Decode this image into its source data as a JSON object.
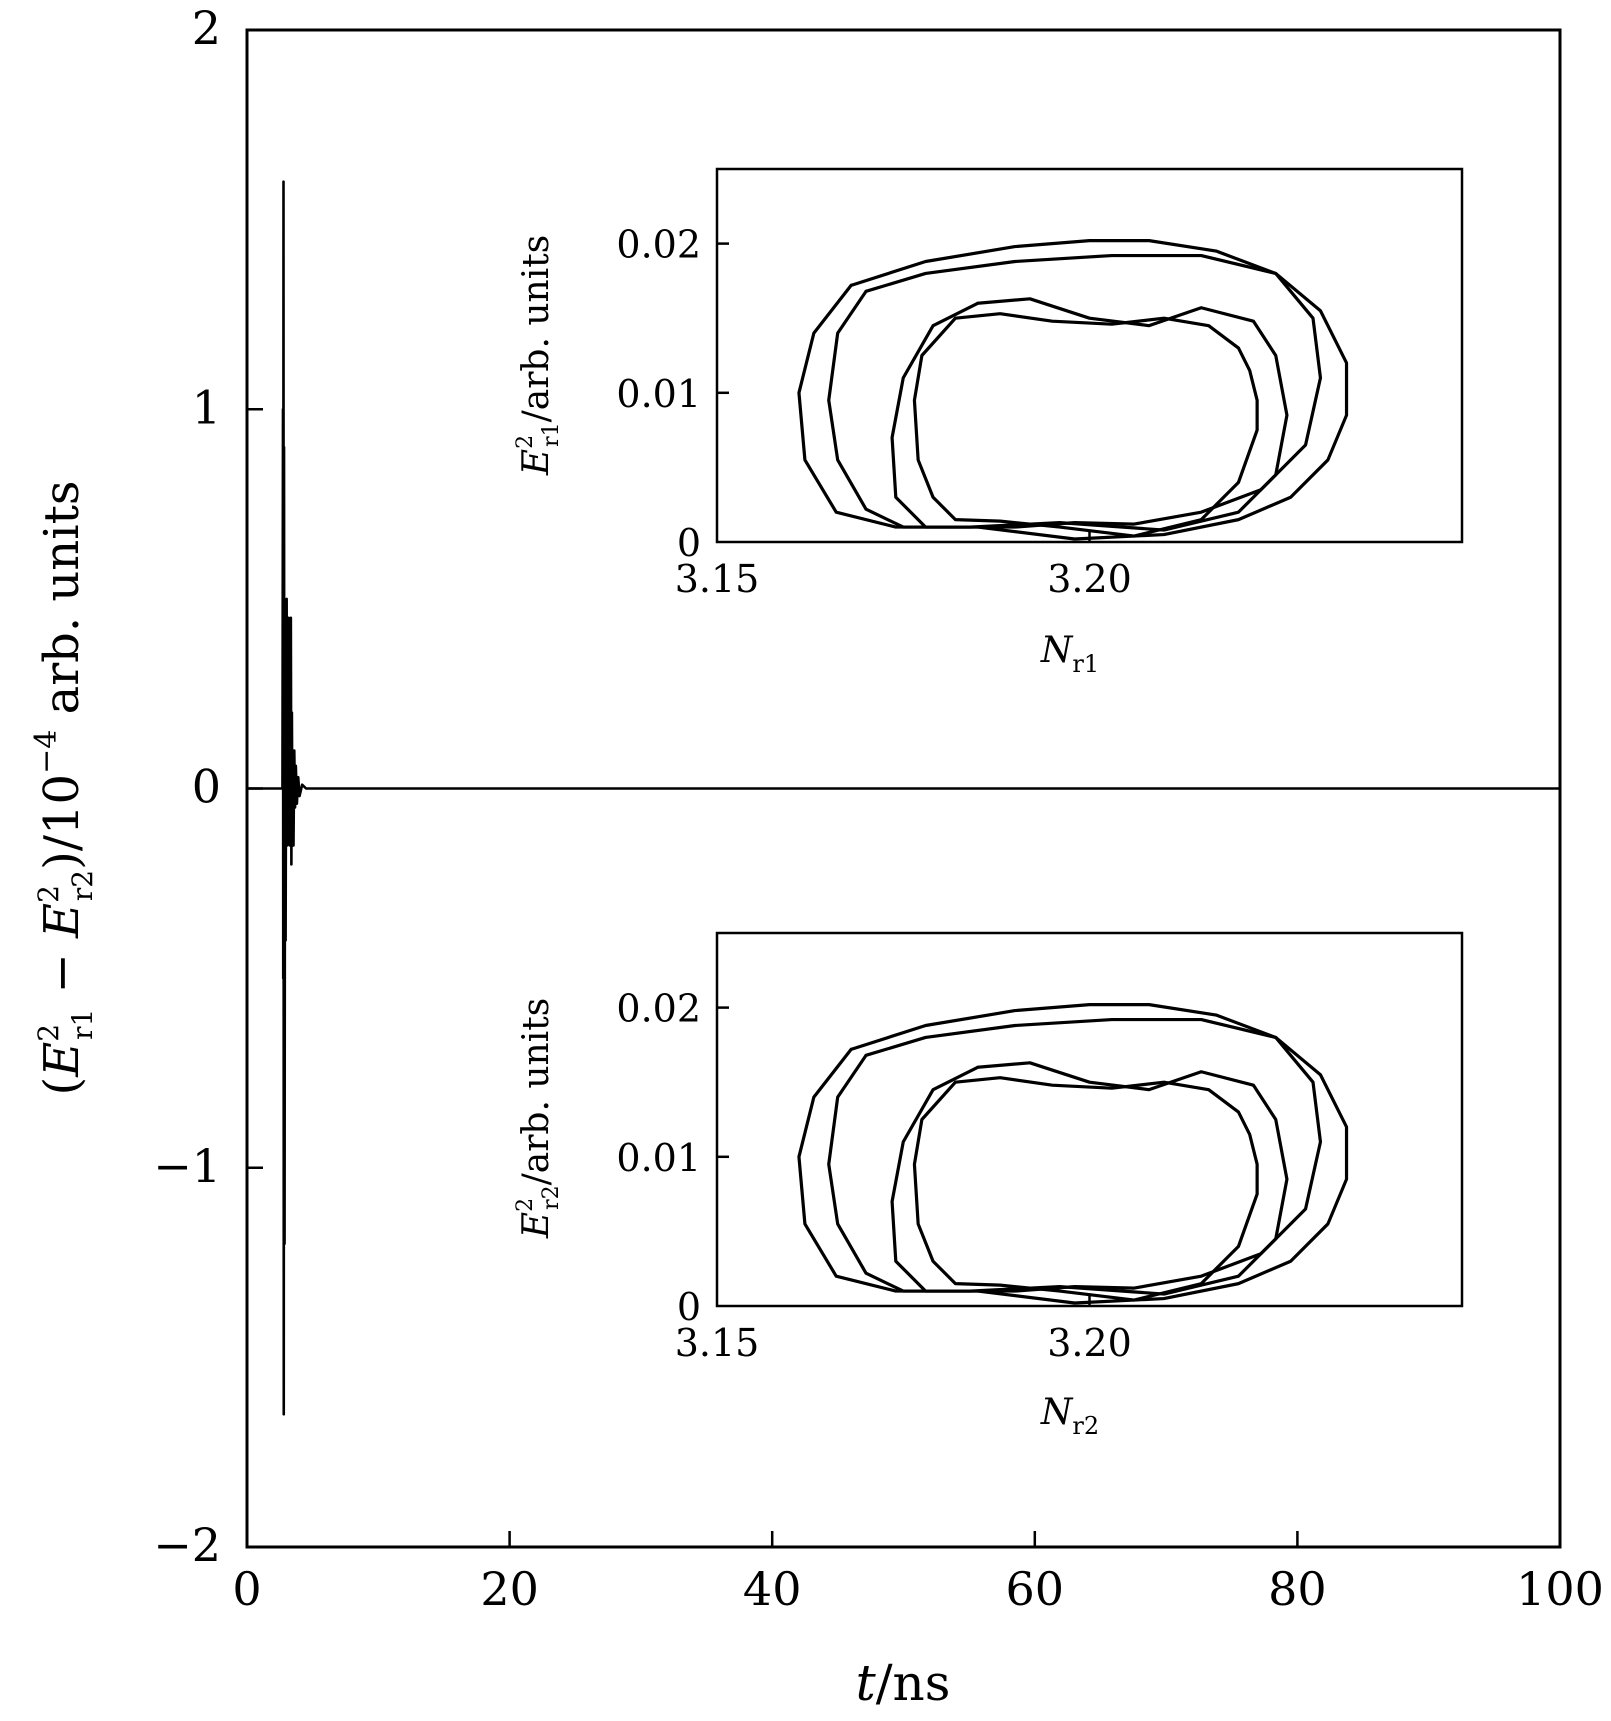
{
  "chart_data": [
    {
      "type": "line",
      "id": "main",
      "xlabel": "t/ns",
      "ylabel": "(E²r1 − E²r2)/10⁻⁴ arb. units",
      "xlim": [
        0,
        100
      ],
      "ylim": [
        -2,
        2
      ],
      "x_ticks": [
        0,
        20,
        40,
        60,
        80,
        100
      ],
      "x_tick_labels": [
        "0",
        "20",
        "40",
        "60",
        "80",
        "100"
      ],
      "y_ticks": [
        -2,
        -1,
        0,
        1,
        2
      ],
      "y_tick_labels": [
        "−2",
        "−1",
        "0",
        "1",
        "2"
      ],
      "grid": false,
      "series": [
        {
          "color": "#000000",
          "x": [
            0,
            2.7,
            2.74,
            2.76,
            2.78,
            2.8,
            2.82,
            2.86,
            2.9,
            2.94,
            2.98,
            3.02,
            3.06,
            3.1,
            3.14,
            3.18,
            3.22,
            3.26,
            3.3,
            3.34,
            3.38,
            3.42,
            3.46,
            3.5,
            3.54,
            3.6,
            3.66,
            3.72,
            3.8,
            3.9,
            4.0,
            4.2,
            4.5,
            5,
            100
          ],
          "y": [
            0,
            0,
            1.0,
            -0.5,
            1.6,
            -1.65,
            0.9,
            -1.2,
            0.3,
            -0.4,
            0.15,
            0.5,
            -0.15,
            0.3,
            -0.1,
            0.45,
            0.4,
            -0.15,
            0.1,
            0.45,
            -0.2,
            0.2,
            -0.15,
            0.1,
            -0.15,
            0.1,
            -0.05,
            0.06,
            -0.04,
            0.03,
            -0.02,
            0.01,
            0,
            0,
            0
          ]
        }
      ]
    },
    {
      "type": "line",
      "id": "inset_top",
      "xlabel": "Nr1",
      "ylabel": "E²r1/arb. units",
      "xlim": [
        3.15,
        3.25
      ],
      "ylim": [
        0,
        0.025
      ],
      "x_ticks": [
        3.15,
        3.2
      ],
      "x_tick_labels": [
        "3.15",
        "3.20"
      ],
      "y_ticks": [
        0,
        0.01,
        0.02
      ],
      "y_tick_labels": [
        "0",
        "0.01",
        "0.02"
      ],
      "grid": false,
      "series": [
        {
          "color": "#000000",
          "x": [
            3.182,
            3.188,
            3.195,
            3.203,
            3.21,
            3.216,
            3.22,
            3.2215,
            3.2225,
            3.2225,
            3.22,
            3.215,
            3.206,
            3.196,
            3.188,
            3.182,
            3.179,
            3.177,
            3.1765,
            3.1775,
            3.182
          ],
          "y": [
            0.015,
            0.0153,
            0.0148,
            0.0146,
            0.015,
            0.0145,
            0.013,
            0.0115,
            0.0095,
            0.0075,
            0.004,
            0.0015,
            0.0004,
            0.001,
            0.0014,
            0.0015,
            0.003,
            0.0055,
            0.0095,
            0.0125,
            0.015
          ]
        },
        {
          "color": "#000000",
          "x": [
            3.185,
            3.192,
            3.2,
            3.208,
            3.215,
            3.222,
            3.225,
            3.2265,
            3.225,
            3.22,
            3.21,
            3.196,
            3.184,
            3.178,
            3.174,
            3.1735,
            3.175,
            3.179,
            3.185
          ],
          "y": [
            0.016,
            0.0163,
            0.015,
            0.0145,
            0.0157,
            0.0148,
            0.0125,
            0.0085,
            0.0045,
            0.002,
            0.0008,
            0.0013,
            0.001,
            0.001,
            0.003,
            0.007,
            0.011,
            0.0145,
            0.016
          ]
        },
        {
          "color": "#000000",
          "x": [
            3.17,
            3.178,
            3.19,
            3.203,
            3.215,
            3.225,
            3.23,
            3.231,
            3.229,
            3.223,
            3.215,
            3.206,
            3.198,
            3.19,
            3.182,
            3.175,
            3.17,
            3.1662,
            3.165,
            3.1662,
            3.17
          ],
          "y": [
            0.0168,
            0.018,
            0.0188,
            0.0192,
            0.0192,
            0.018,
            0.015,
            0.011,
            0.0065,
            0.0035,
            0.002,
            0.0012,
            0.0013,
            0.001,
            0.001,
            0.001,
            0.0022,
            0.0055,
            0.0095,
            0.014,
            0.0168
          ]
        },
        {
          "color": "#000000",
          "x": [
            3.168,
            3.178,
            3.19,
            3.2,
            3.208,
            3.217,
            3.225,
            3.231,
            3.2345,
            3.2345,
            3.232,
            3.227,
            3.22,
            3.21,
            3.198,
            3.185,
            3.174,
            3.166,
            3.1618,
            3.161,
            3.163,
            3.168
          ],
          "y": [
            0.0172,
            0.0188,
            0.0198,
            0.0202,
            0.0202,
            0.0195,
            0.018,
            0.0155,
            0.012,
            0.0085,
            0.0055,
            0.003,
            0.0015,
            0.0005,
            0.0002,
            0.001,
            0.001,
            0.002,
            0.0055,
            0.01,
            0.014,
            0.0172
          ]
        }
      ]
    },
    {
      "type": "line",
      "id": "inset_bottom",
      "xlabel": "Nr2",
      "ylabel": "E²r2/arb. units",
      "xlim": [
        3.15,
        3.25
      ],
      "ylim": [
        0,
        0.025
      ],
      "x_ticks": [
        3.15,
        3.2
      ],
      "x_tick_labels": [
        "3.15",
        "3.20"
      ],
      "y_ticks": [
        0,
        0.01,
        0.02
      ],
      "y_tick_labels": [
        "0",
        "0.01",
        "0.02"
      ],
      "grid": false,
      "series": [
        {
          "color": "#000000",
          "x": [
            3.182,
            3.188,
            3.195,
            3.203,
            3.21,
            3.216,
            3.22,
            3.2215,
            3.2225,
            3.2225,
            3.22,
            3.215,
            3.206,
            3.196,
            3.188,
            3.182,
            3.179,
            3.177,
            3.1765,
            3.1775,
            3.182
          ],
          "y": [
            0.015,
            0.0153,
            0.0148,
            0.0146,
            0.015,
            0.0145,
            0.013,
            0.0115,
            0.0095,
            0.0075,
            0.004,
            0.0015,
            0.0004,
            0.001,
            0.0014,
            0.0015,
            0.003,
            0.0055,
            0.0095,
            0.0125,
            0.015
          ]
        },
        {
          "color": "#000000",
          "x": [
            3.185,
            3.192,
            3.2,
            3.208,
            3.215,
            3.222,
            3.225,
            3.2265,
            3.225,
            3.22,
            3.21,
            3.196,
            3.184,
            3.178,
            3.174,
            3.1735,
            3.175,
            3.179,
            3.185
          ],
          "y": [
            0.016,
            0.0163,
            0.015,
            0.0145,
            0.0157,
            0.0148,
            0.0125,
            0.0085,
            0.0045,
            0.002,
            0.0008,
            0.0013,
            0.001,
            0.001,
            0.003,
            0.007,
            0.011,
            0.0145,
            0.016
          ]
        },
        {
          "color": "#000000",
          "x": [
            3.17,
            3.178,
            3.19,
            3.203,
            3.215,
            3.225,
            3.23,
            3.231,
            3.229,
            3.223,
            3.215,
            3.206,
            3.198,
            3.19,
            3.182,
            3.175,
            3.17,
            3.1662,
            3.165,
            3.1662,
            3.17
          ],
          "y": [
            0.0168,
            0.018,
            0.0188,
            0.0192,
            0.0192,
            0.018,
            0.015,
            0.011,
            0.0065,
            0.0035,
            0.002,
            0.0012,
            0.0013,
            0.001,
            0.001,
            0.001,
            0.0022,
            0.0055,
            0.0095,
            0.014,
            0.0168
          ]
        },
        {
          "color": "#000000",
          "x": [
            3.168,
            3.178,
            3.19,
            3.2,
            3.208,
            3.217,
            3.225,
            3.231,
            3.2345,
            3.2345,
            3.232,
            3.227,
            3.22,
            3.21,
            3.198,
            3.185,
            3.174,
            3.166,
            3.1618,
            3.161,
            3.163,
            3.168
          ],
          "y": [
            0.0172,
            0.0188,
            0.0198,
            0.0202,
            0.0202,
            0.0195,
            0.018,
            0.0155,
            0.012,
            0.0085,
            0.0055,
            0.003,
            0.0015,
            0.0005,
            0.0002,
            0.001,
            0.001,
            0.002,
            0.0055,
            0.01,
            0.014,
            0.0172
          ]
        }
      ]
    }
  ],
  "labels": {
    "main_x": {
      "var": "t",
      "rest": "/ns"
    },
    "main_y": {
      "open": "(",
      "E": "E",
      "sup": "2",
      "sub1": "r1",
      "minus": " − ",
      "sub2": "r2",
      "close": ")/10",
      "exp": "−4",
      "tail": " arb. units"
    },
    "inset_top_x": {
      "N": "N",
      "sub": "r1"
    },
    "inset_top_y": {
      "E": "E",
      "sup": "2",
      "sub": "r1",
      "tail": "/arb. units"
    },
    "inset_bottom_x": {
      "N": "N",
      "sub": "r2"
    },
    "inset_bottom_y": {
      "E": "E",
      "sup": "2",
      "sub": "r2",
      "tail": "/arb. units"
    }
  }
}
